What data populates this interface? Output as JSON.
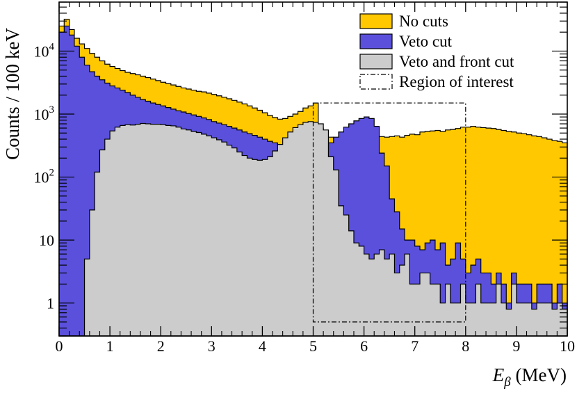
{
  "chart_data": {
    "type": "histogram",
    "xlabel": {
      "symbol": "E",
      "subscript": "β",
      "unit": " (MeV)"
    },
    "ylabel": "Counts / 100 keV",
    "xlim": [
      0,
      10
    ],
    "ylim": [
      0.3,
      60000
    ],
    "yscale": "log",
    "bin_width": 0.1,
    "x_ticks": [
      "0",
      "1",
      "2",
      "3",
      "4",
      "5",
      "6",
      "7",
      "8",
      "9",
      "10"
    ],
    "y_ticks": [
      {
        "value": 1,
        "base": "1",
        "exp": ""
      },
      {
        "value": 10,
        "base": "10",
        "exp": ""
      },
      {
        "value": 100,
        "base": "10",
        "exp": "2"
      },
      {
        "value": 1000,
        "base": "10",
        "exp": "3"
      },
      {
        "value": 10000,
        "base": "10",
        "exp": "4"
      }
    ],
    "legend_position": "top-right",
    "series": [
      {
        "name": "No cuts",
        "color": "#ffc800",
        "values": [
          25000,
          32000,
          22000,
          16000,
          13000,
          11000,
          9200,
          8000,
          7000,
          6200,
          5700,
          5300,
          4900,
          4600,
          4400,
          4200,
          4000,
          3800,
          3600,
          3400,
          3200,
          3050,
          2900,
          2750,
          2600,
          2500,
          2400,
          2300,
          2250,
          2150,
          2050,
          1950,
          1850,
          1750,
          1650,
          1550,
          1450,
          1350,
          1250,
          1150,
          1050,
          950,
          880,
          830,
          850,
          920,
          1000,
          1100,
          1250,
          1350,
          1500,
          600,
          500,
          430,
          410,
          400,
          410,
          420,
          430,
          430,
          420,
          440,
          430,
          440,
          430,
          440,
          450,
          430,
          460,
          480,
          470,
          520,
          530,
          540,
          550,
          530,
          560,
          570,
          590,
          620,
          620,
          640,
          620,
          610,
          600,
          590,
          570,
          550,
          530,
          520,
          500,
          490,
          470,
          450,
          440,
          420,
          400,
          380,
          370,
          350
        ]
      },
      {
        "name": "Veto cut",
        "color": "#5a50dc",
        "values": [
          20000,
          25000,
          18000,
          12000,
          8000,
          6000,
          4700,
          4000,
          3500,
          3100,
          2800,
          2600,
          2400,
          2200,
          2000,
          1850,
          1700,
          1600,
          1500,
          1420,
          1350,
          1270,
          1200,
          1130,
          1080,
          1020,
          970,
          920,
          870,
          820,
          760,
          720,
          680,
          640,
          600,
          560,
          520,
          490,
          460,
          430,
          400,
          370,
          350,
          320,
          300,
          280,
          250,
          220,
          200,
          190,
          190,
          220,
          280,
          350,
          430,
          520,
          620,
          700,
          780,
          850,
          900,
          850,
          640,
          240,
          150,
          45,
          28,
          15,
          10,
          10,
          8,
          7,
          9,
          10,
          7,
          9,
          4,
          5,
          9,
          5,
          3,
          4,
          5,
          3,
          3,
          2,
          3,
          2,
          1,
          3,
          2,
          2,
          2,
          1,
          2,
          2,
          2,
          1,
          2,
          1
        ]
      },
      {
        "name": "Veto and front cut",
        "color": "#cccccc",
        "values": [
          0,
          0,
          0,
          0,
          0,
          5,
          30,
          120,
          270,
          400,
          540,
          620,
          660,
          680,
          670,
          690,
          710,
          700,
          690,
          690,
          680,
          660,
          650,
          620,
          580,
          560,
          530,
          510,
          480,
          450,
          420,
          390,
          360,
          320,
          290,
          250,
          220,
          200,
          190,
          185,
          190,
          210,
          260,
          330,
          420,
          520,
          610,
          680,
          740,
          760,
          740,
          700,
          560,
          210,
          130,
          35,
          25,
          14,
          9,
          8,
          6,
          5,
          6,
          7,
          5,
          6,
          3,
          4,
          6,
          2,
          2,
          3,
          3,
          2,
          2,
          1,
          2,
          1,
          1,
          2,
          1,
          1,
          2,
          1,
          1,
          1,
          2,
          1,
          0.8,
          2,
          1,
          1,
          1,
          0.8,
          1,
          1,
          1,
          0.8,
          1,
          0.8
        ]
      }
    ],
    "region_of_interest": {
      "name": "Region of interest",
      "x": [
        5,
        8
      ],
      "y": [
        0.5,
        1500
      ]
    }
  }
}
